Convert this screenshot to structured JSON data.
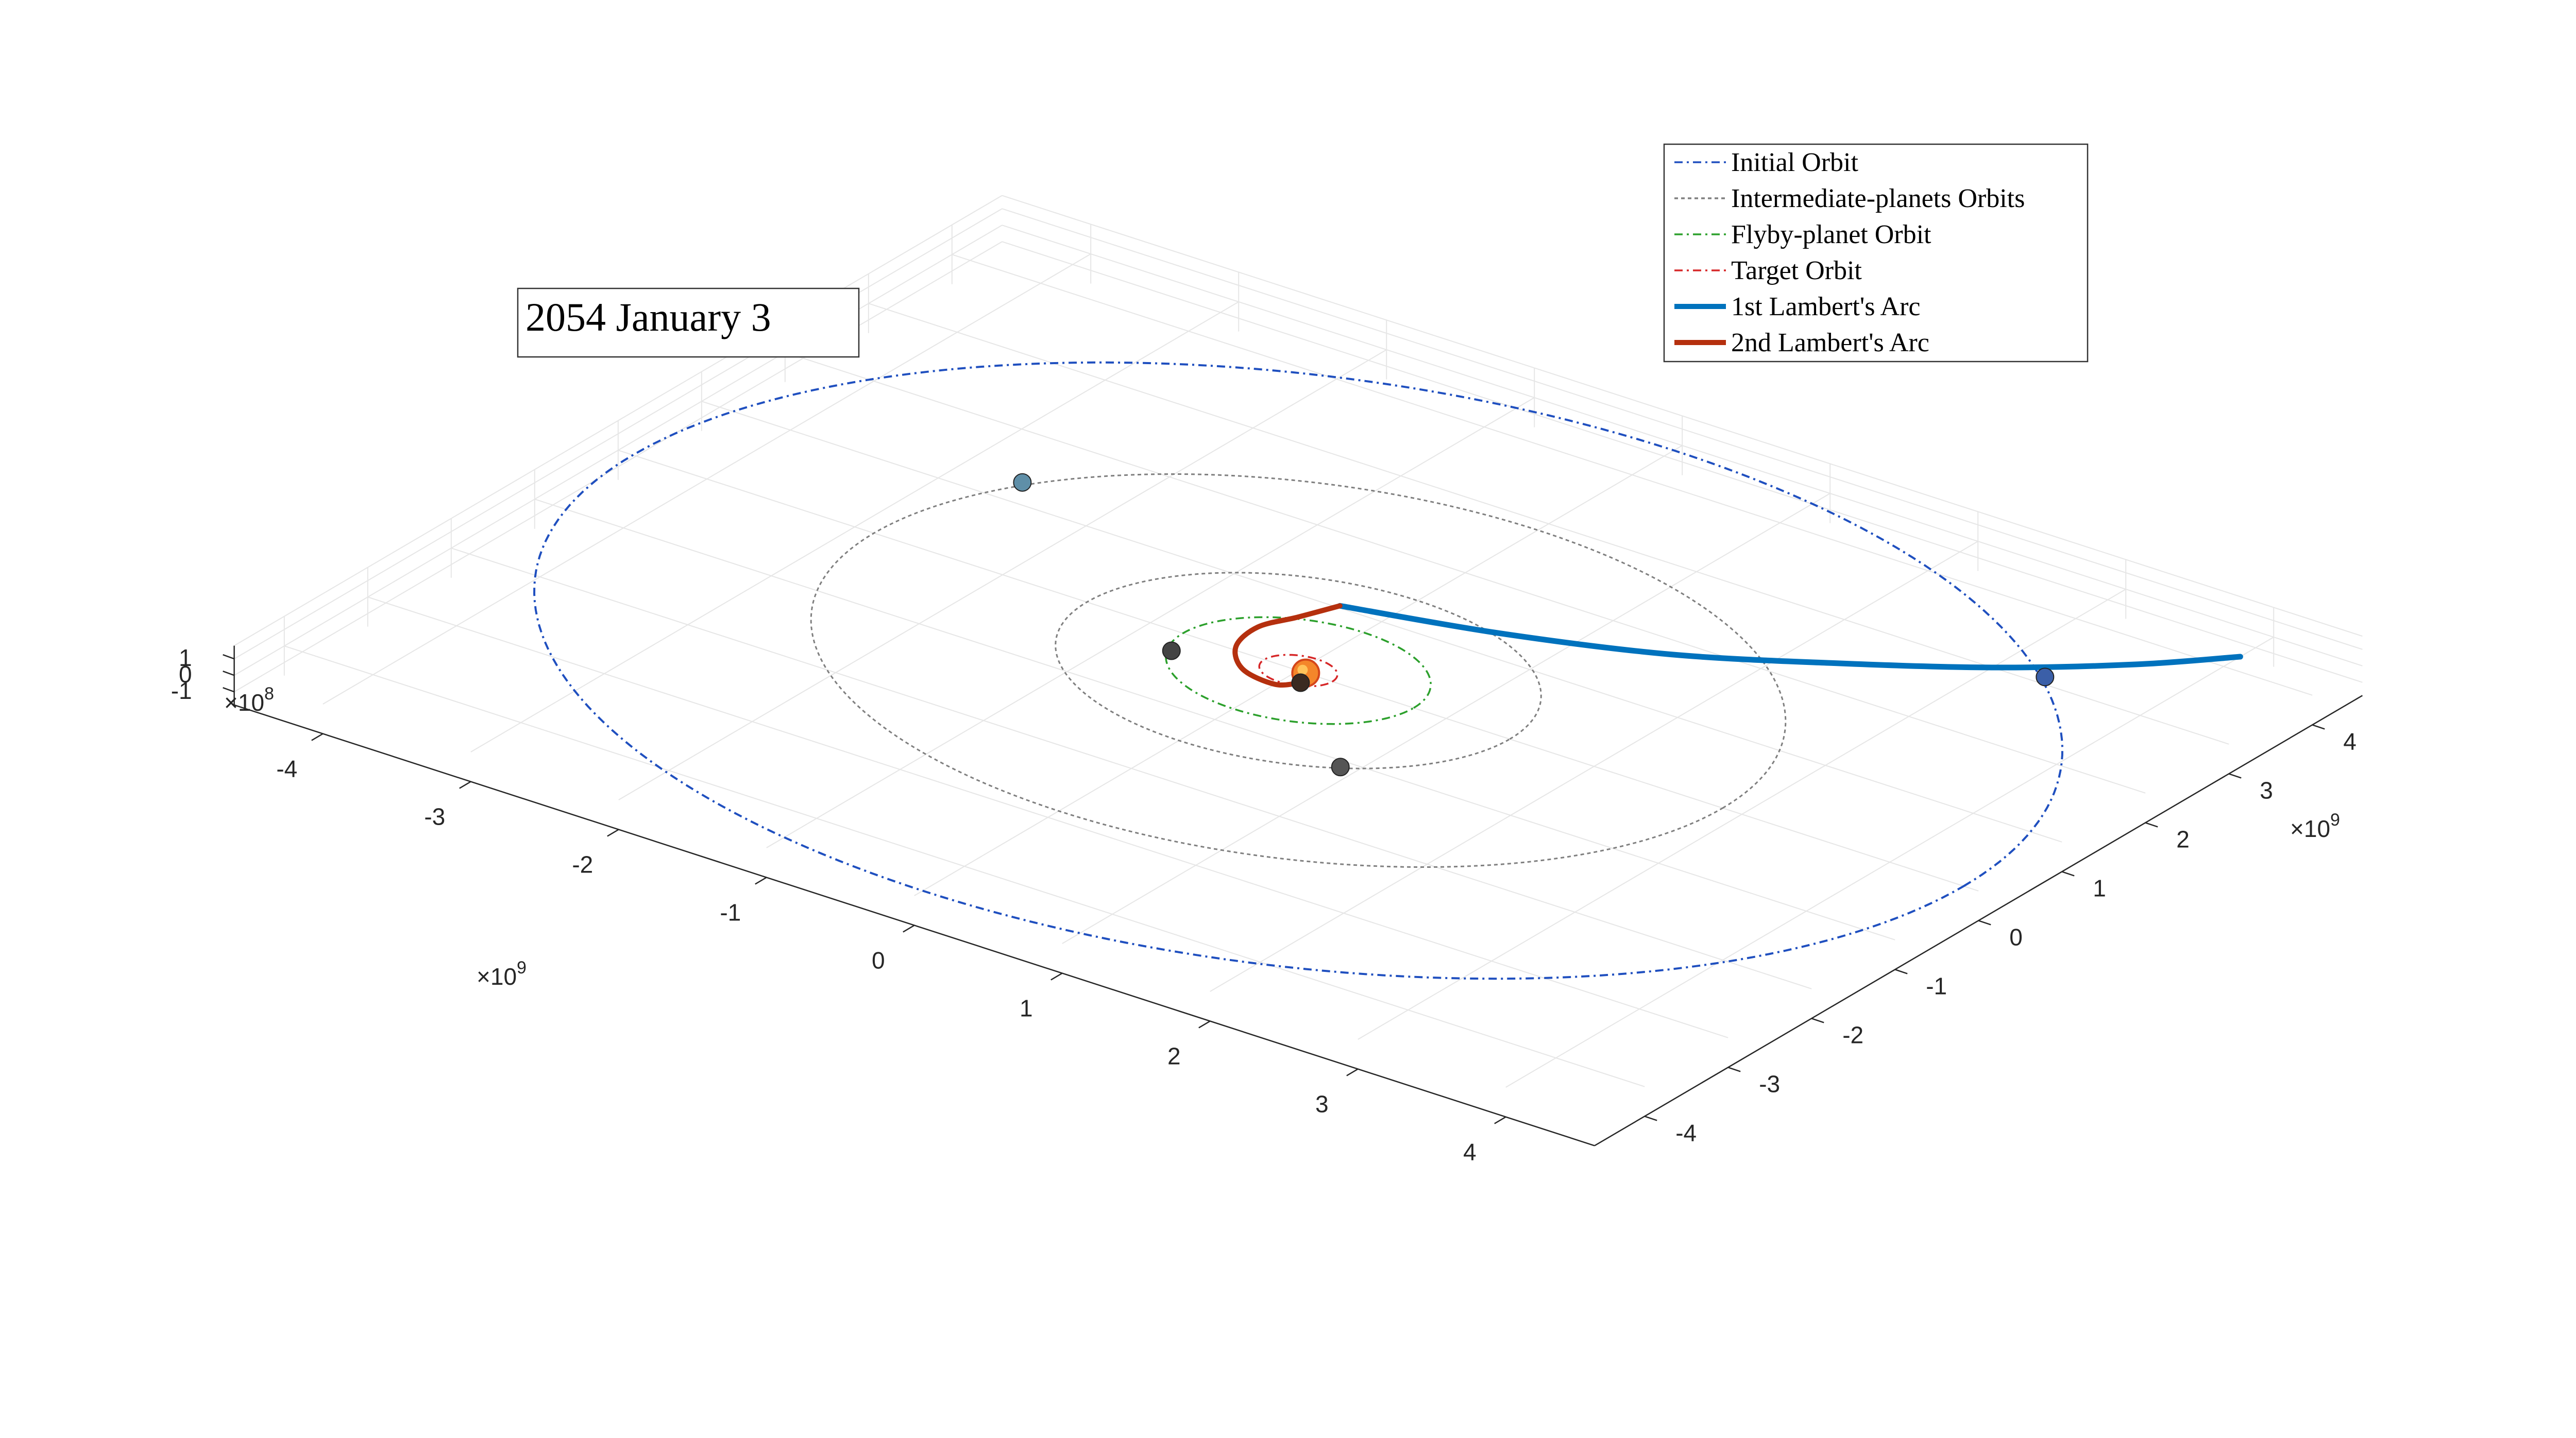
{
  "chart_data": {
    "type": "line",
    "projection": "3d",
    "date_label": "2054 January 3",
    "x_axis": {
      "ticks": [
        -4,
        -3,
        -2,
        -1,
        0,
        1,
        2,
        3,
        4
      ],
      "tick_labels": [
        "-4",
        "-3",
        "-2",
        "-1",
        "0",
        "1",
        "2",
        "3",
        "4"
      ],
      "exponent_base": "×10",
      "exponent": "9"
    },
    "y_axis": {
      "ticks": [
        -4,
        -3,
        -2,
        -1,
        0,
        1,
        2,
        3,
        4
      ],
      "tick_labels": [
        "-4",
        "-3",
        "-2",
        "-1",
        "0",
        "1",
        "2",
        "3",
        "4"
      ],
      "exponent_base": "×10",
      "exponent": "9"
    },
    "z_axis": {
      "ticks": [
        -1,
        0,
        1
      ],
      "tick_labels": [
        "-1",
        "0",
        "1"
      ],
      "exponent_base": "×10",
      "exponent": "8"
    },
    "grid": true,
    "legend_position": "top-right",
    "series": [
      {
        "name": "Initial Orbit",
        "color": "#1f4fbf",
        "style": "dashdot",
        "orbit_radius": 4.5
      },
      {
        "name": "Intermediate-planets Orbits",
        "color": "#7f7f7f",
        "style": "dotted",
        "orbit_radii": [
          1.43,
          2.87
        ]
      },
      {
        "name": "Flyby-planet Orbit",
        "color": "#2ca02c",
        "style": "dashdot",
        "orbit_radius": 0.78
      },
      {
        "name": "Target Orbit",
        "color": "#d62728",
        "style": "dashdot",
        "orbit_radius": 0.23
      },
      {
        "name": "1st Lambert's Arc",
        "color": "#0072bd",
        "style": "solid",
        "points": [
          [
            -0.3,
            1.03
          ],
          [
            0.6,
            1.35
          ],
          [
            1.5,
            1.8
          ],
          [
            2.3,
            2.4
          ],
          [
            3.0,
            3.0
          ],
          [
            3.6,
            3.65
          ],
          [
            4.0,
            4.2
          ]
        ]
      },
      {
        "name": "2nd Lambert's Arc",
        "color": "#b5300e",
        "style": "solid",
        "points": [
          [
            -0.3,
            1.03
          ],
          [
            -0.4,
            0.7
          ],
          [
            -0.5,
            0.4
          ],
          [
            -0.45,
            0.05
          ],
          [
            -0.25,
            -0.22
          ],
          [
            0.0,
            -0.28
          ],
          [
            0.1,
            -0.15
          ]
        ]
      }
    ],
    "bodies": [
      {
        "name": "sun",
        "x": 0.05,
        "y": 0.0,
        "color": "#f4862a"
      },
      {
        "name": "planet-initial",
        "x": 3.3,
        "y": 3.1,
        "color": "#3b5fa8"
      },
      {
        "name": "planet-outer-intermediate",
        "x": -2.6,
        "y": 1.3,
        "color": "#5f8fa8"
      },
      {
        "name": "planet-inner-intermediate",
        "x": 0.9,
        "y": -1.09,
        "color": "#555555"
      },
      {
        "name": "planet-flyby",
        "x": -0.7,
        "y": -0.28,
        "color": "#444444"
      },
      {
        "name": "planet-target",
        "x": 0.1,
        "y": -0.15,
        "color": "#3a2a20"
      }
    ]
  }
}
